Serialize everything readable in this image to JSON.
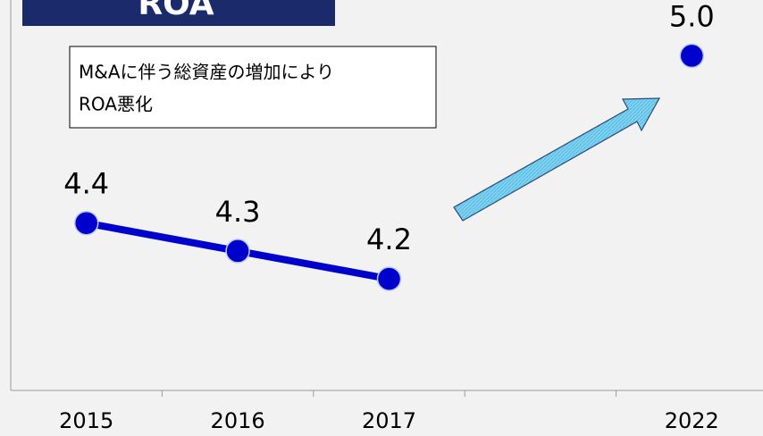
{
  "chart_data": {
    "type": "line",
    "title": "ROA",
    "annotation": [
      "M&Aに伴う総資産の増加により",
      "ROA悪化"
    ],
    "categories": [
      "2015",
      "2016",
      "2017",
      null,
      "2022"
    ],
    "values": [
      4.4,
      4.3,
      4.2,
      null,
      5.0
    ],
    "value_labels": [
      "4.4",
      "4.3",
      "4.2",
      null,
      "5.0"
    ],
    "color": "#0000cc",
    "ylim": [
      3.8,
      5.2
    ]
  }
}
